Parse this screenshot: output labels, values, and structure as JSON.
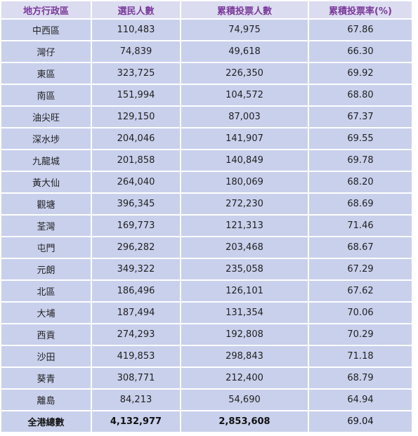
{
  "headers": [
    "地方行政區",
    "選民人數",
    "累積投票人數",
    "累積投票率(%)"
  ],
  "rows": [
    [
      "中西區",
      "110,483",
      "74,975",
      "67.86"
    ],
    [
      "灣仔",
      "74,839",
      "49,618",
      "66.30"
    ],
    [
      "東區",
      "323,725",
      "226,350",
      "69.92"
    ],
    [
      "南區",
      "151,994",
      "104,572",
      "68.80"
    ],
    [
      "油尖旺",
      "129,150",
      "87,003",
      "67.37"
    ],
    [
      "深水埗",
      "204,046",
      "141,907",
      "69.55"
    ],
    [
      "九龍城",
      "201,858",
      "140,849",
      "69.78"
    ],
    [
      "黃大仙",
      "264,040",
      "180,069",
      "68.20"
    ],
    [
      "觀塘",
      "396,345",
      "272,230",
      "68.69"
    ],
    [
      "荃灣",
      "169,773",
      "121,313",
      "71.46"
    ],
    [
      "屯門",
      "296,282",
      "203,468",
      "68.67"
    ],
    [
      "元朗",
      "349,322",
      "235,058",
      "67.29"
    ],
    [
      "北區",
      "186,496",
      "126,101",
      "67.62"
    ],
    [
      "大埔",
      "187,494",
      "131,354",
      "70.06"
    ],
    [
      "西貢",
      "274,293",
      "192,808",
      "70.29"
    ],
    [
      "沙田",
      "419,853",
      "298,843",
      "71.18"
    ],
    [
      "葵青",
      "308,771",
      "212,400",
      "68.79"
    ],
    [
      "離島",
      "84,213",
      "54,690",
      "64.94"
    ]
  ],
  "total": [
    "全港總數",
    "4,132,977",
    "2,853,608",
    "69.04"
  ],
  "colors": {
    "header_bg": "#dcdcf0",
    "header_text": "#7a3a9a",
    "cell_bg": "#c9d0ec"
  }
}
